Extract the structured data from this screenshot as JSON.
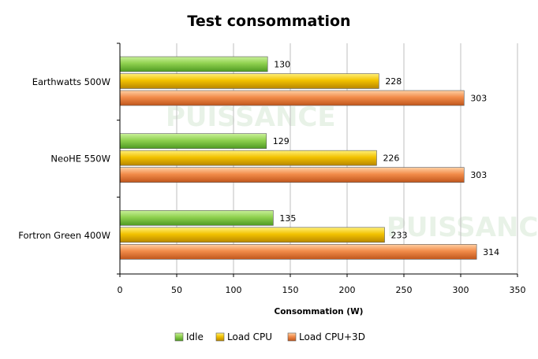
{
  "chart_data": {
    "type": "bar",
    "orientation": "horizontal",
    "title": "Test consommation",
    "xlabel": "Consommation (W)",
    "ylabel": "",
    "categories": [
      "Earthwatts 500W",
      "NeoHE 550W",
      "Fortron Green 400W"
    ],
    "series": [
      {
        "name": "Idle",
        "values": [
          130,
          129,
          135
        ],
        "color": "#8fd14f"
      },
      {
        "name": "Load CPU",
        "values": [
          228,
          226,
          233
        ],
        "color": "#f2c200"
      },
      {
        "name": "Load CPU+3D",
        "values": [
          303,
          303,
          314
        ],
        "color": "#f28c4a"
      }
    ],
    "xlim": [
      0,
      350
    ],
    "xticks": [
      0,
      50,
      100,
      150,
      200,
      250,
      300,
      350
    ],
    "grid": "vertical",
    "legend": "bottom",
    "watermark": "PUISSANCE"
  }
}
